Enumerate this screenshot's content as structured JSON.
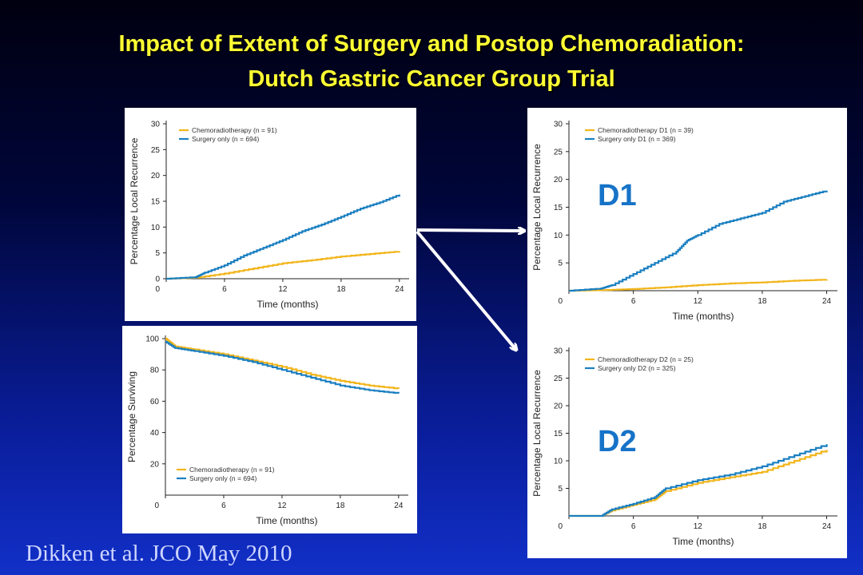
{
  "slide": {
    "title_line1": "Impact of Extent of Surgery and Postop Chemoradiation:",
    "title_line2": "Dutch Gastric Cancer Group Trial",
    "citation": "Dikken et al. JCO May 2010"
  },
  "colors": {
    "chemo": "#f2b51b",
    "surgery": "#1a7fc1",
    "badge": "#1673c8"
  },
  "chart_data": [
    {
      "id": "all",
      "type": "line",
      "step": true,
      "ylabel": "Percentage Local Recurrence",
      "xlabel": "Time (months)",
      "xticks": [
        0,
        6,
        12,
        18,
        24
      ],
      "yticks": [
        0,
        5,
        10,
        15,
        20,
        25,
        30
      ],
      "xlim": [
        0,
        25
      ],
      "ylim": [
        0,
        30
      ],
      "series": [
        {
          "name": "Chemoradiotherapy (n = 91)",
          "color": "#f2b51b",
          "x": [
            0,
            3,
            6,
            9,
            12,
            15,
            18,
            21,
            24
          ],
          "y": [
            0,
            0.2,
            1.0,
            2.0,
            3.0,
            3.6,
            4.3,
            4.8,
            5.3
          ]
        },
        {
          "name": "Surgery only (n = 694)",
          "color": "#1a7fc1",
          "x": [
            0,
            3,
            4,
            6,
            8,
            10,
            12,
            14,
            16,
            18,
            20,
            22,
            24
          ],
          "y": [
            0,
            0.3,
            1.2,
            2.6,
            4.5,
            6.0,
            7.5,
            9.2,
            10.5,
            12.0,
            13.6,
            14.8,
            16.3
          ]
        }
      ]
    },
    {
      "id": "survival",
      "type": "line",
      "step": true,
      "ylabel": "Percentage Surviving",
      "xlabel": "Time (months)",
      "xticks": [
        0,
        6,
        12,
        18,
        24
      ],
      "yticks": [
        20,
        40,
        60,
        80,
        100
      ],
      "xlim": [
        0,
        25
      ],
      "ylim": [
        0,
        100
      ],
      "series": [
        {
          "name": "Chemoradiotherapy (n = 91)",
          "color": "#f2b51b",
          "x": [
            0,
            1,
            3,
            6,
            9,
            12,
            15,
            18,
            21,
            24
          ],
          "y": [
            100,
            95,
            93,
            90,
            86,
            82,
            77,
            73,
            70,
            68
          ]
        },
        {
          "name": "Surgery only (n = 694)",
          "color": "#1a7fc1",
          "x": [
            0,
            1,
            3,
            6,
            9,
            12,
            15,
            18,
            21,
            24
          ],
          "y": [
            98,
            94,
            92,
            89,
            85,
            80,
            75,
            70,
            67,
            65
          ]
        }
      ]
    },
    {
      "id": "d1",
      "type": "line",
      "step": true,
      "badge": "D1",
      "ylabel": "Percentage Local Recurrence",
      "xlabel": "Time (months)",
      "xticks": [
        0,
        6,
        12,
        18,
        24
      ],
      "yticks": [
        5,
        10,
        15,
        20,
        25,
        30
      ],
      "xlim": [
        0,
        25
      ],
      "ylim": [
        0,
        30
      ],
      "series": [
        {
          "name": "Chemoradiotherapy D1 (n = 39)",
          "color": "#f2b51b",
          "x": [
            0,
            3,
            6,
            9,
            12,
            15,
            18,
            21,
            24
          ],
          "y": [
            0,
            0.1,
            0.3,
            0.6,
            1.0,
            1.3,
            1.5,
            1.8,
            2.0
          ]
        },
        {
          "name": "Surgery only D1 (n = 369)",
          "color": "#1a7fc1",
          "x": [
            0,
            3,
            4,
            6,
            8,
            10,
            11,
            12,
            14,
            16,
            18,
            20,
            22,
            24
          ],
          "y": [
            0,
            0.4,
            1.0,
            3.0,
            5.0,
            7.0,
            9.0,
            10.0,
            12.0,
            13.0,
            14.0,
            16.0,
            17.0,
            18.0
          ]
        }
      ]
    },
    {
      "id": "d2",
      "type": "line",
      "step": true,
      "badge": "D2",
      "ylabel": "Percentage Local Recurrence",
      "xlabel": "Time (months)",
      "xticks": [
        0,
        6,
        12,
        18,
        24
      ],
      "yticks": [
        5,
        10,
        15,
        20,
        25,
        30
      ],
      "xlim": [
        0,
        25
      ],
      "ylim": [
        0,
        30
      ],
      "series": [
        {
          "name": "Chemoradiotherapy D2 (n = 25)",
          "color": "#f2b51b",
          "x": [
            0,
            3,
            4,
            6,
            8,
            9,
            12,
            15,
            18,
            21,
            24
          ],
          "y": [
            0,
            0,
            1.0,
            2.0,
            3.0,
            4.5,
            6.0,
            7.0,
            8.0,
            10.0,
            12.0
          ]
        },
        {
          "name": "Surgery only D2 (n = 325)",
          "color": "#1a7fc1",
          "x": [
            0,
            3,
            4,
            6,
            8,
            9,
            12,
            15,
            18,
            21,
            24
          ],
          "y": [
            0,
            0,
            1.2,
            2.2,
            3.4,
            5.0,
            6.5,
            7.5,
            9.0,
            11.0,
            13.0
          ]
        }
      ]
    }
  ]
}
